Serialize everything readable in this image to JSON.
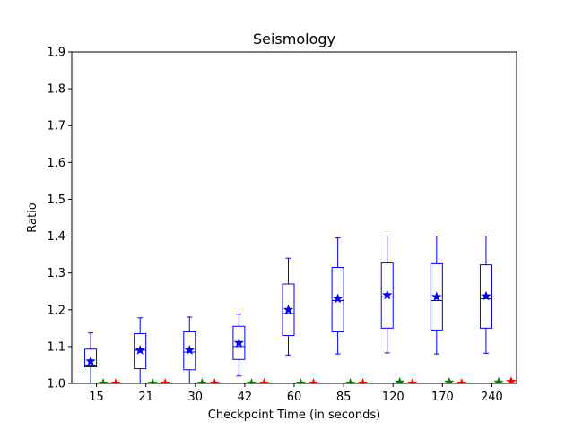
{
  "chart_data": {
    "type": "box",
    "title": "Seismology",
    "xlabel": "Checkpoint Time (in seconds)",
    "ylabel": "Ratio",
    "ylim": [
      1.0,
      1.9
    ],
    "yticks": [
      "1.0",
      "1.1",
      "1.2",
      "1.3",
      "1.4",
      "1.5",
      "1.6",
      "1.7",
      "1.8",
      "1.9"
    ],
    "categories": [
      "15",
      "21",
      "30",
      "42",
      "60",
      "85",
      "120",
      "170",
      "240"
    ],
    "colors": {
      "box": "#0000ff",
      "green_marker": "#008000",
      "red_marker": "#ff0000"
    },
    "box_series": [
      {
        "whislo": 1.0,
        "q1": 1.045,
        "med": 1.05,
        "q3": 1.093,
        "whishi": 1.137,
        "mean": 1.06
      },
      {
        "whislo": 1.0,
        "q1": 1.04,
        "med": 1.09,
        "q3": 1.135,
        "whishi": 1.178,
        "mean": 1.09
      },
      {
        "whislo": 1.0,
        "q1": 1.037,
        "med": 1.085,
        "q3": 1.14,
        "whishi": 1.18,
        "mean": 1.09
      },
      {
        "whislo": 1.02,
        "q1": 1.065,
        "med": 1.1,
        "q3": 1.155,
        "whishi": 1.188,
        "mean": 1.11
      },
      {
        "whislo": 1.077,
        "q1": 1.13,
        "med": 1.19,
        "q3": 1.27,
        "whishi": 1.34,
        "mean": 1.2
      },
      {
        "whislo": 1.08,
        "q1": 1.14,
        "med": 1.225,
        "q3": 1.315,
        "whishi": 1.395,
        "mean": 1.23
      },
      {
        "whislo": 1.083,
        "q1": 1.15,
        "med": 1.235,
        "q3": 1.327,
        "whishi": 1.4,
        "mean": 1.24
      },
      {
        "whislo": 1.08,
        "q1": 1.145,
        "med": 1.225,
        "q3": 1.325,
        "whishi": 1.4,
        "mean": 1.235
      },
      {
        "whislo": 1.082,
        "q1": 1.15,
        "med": 1.23,
        "q3": 1.322,
        "whishi": 1.4,
        "mean": 1.237
      }
    ],
    "green_values": [
      1.0,
      1.0,
      1.0,
      1.0,
      1.0,
      1.0,
      1.003,
      1.003,
      1.003
    ],
    "red_values": [
      1.0,
      1.0,
      1.0,
      1.0,
      1.0,
      1.0,
      1.0,
      1.0,
      1.005
    ]
  }
}
